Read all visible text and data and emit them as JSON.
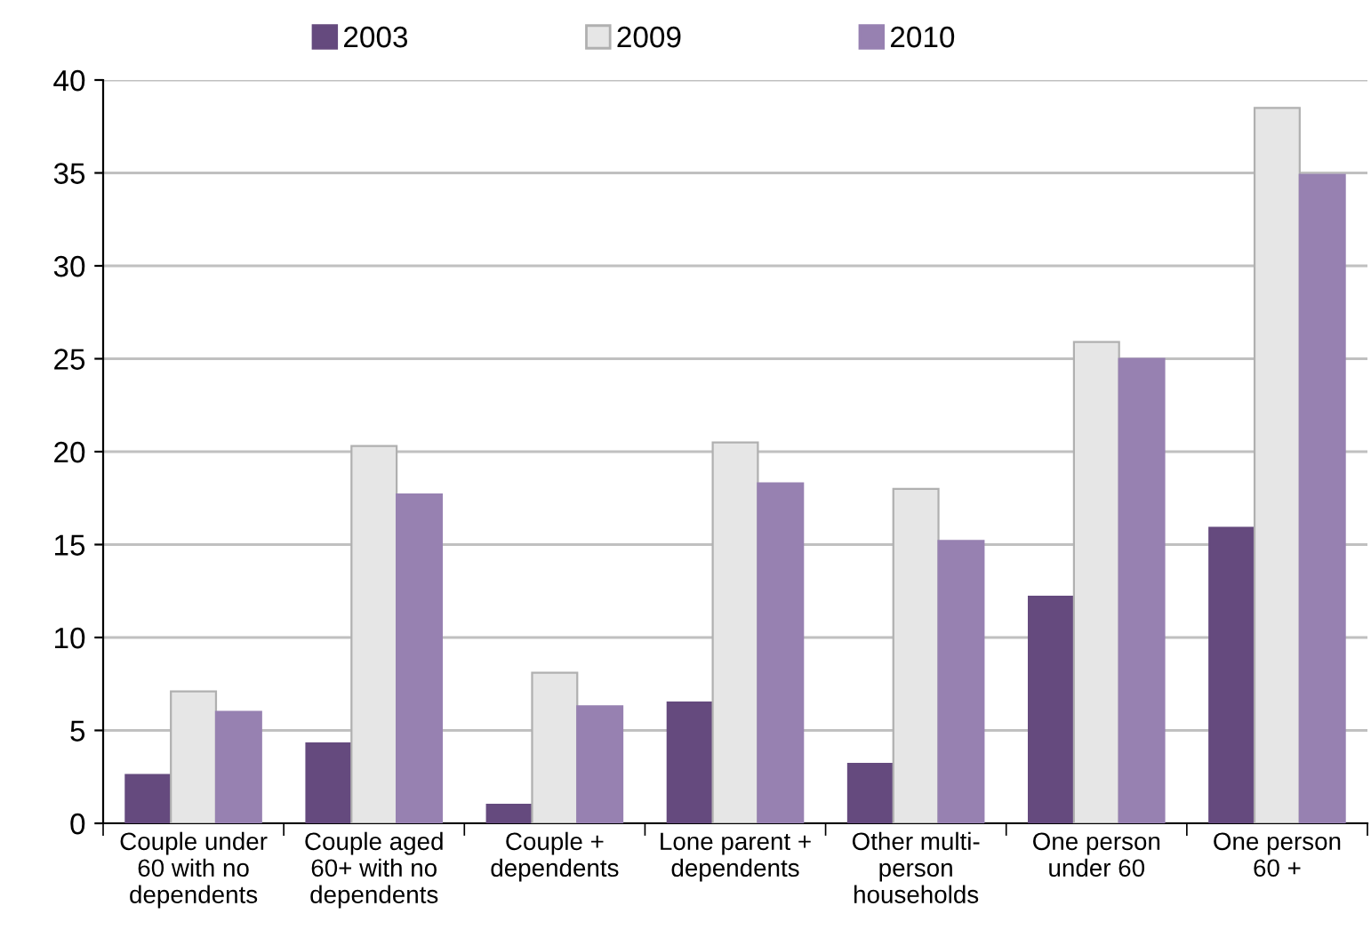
{
  "chart_data": {
    "type": "bar",
    "categories": [
      "Couple under\n60 with no\ndependents",
      "Couple aged\n60+ with no\ndependents",
      "Couple +\ndependents",
      "Lone parent +\ndependents",
      "Other multi-\nperson\nhouseholds",
      "One person\nunder 60",
      "One person\n60 +"
    ],
    "series": [
      {
        "name": "2003",
        "color": "#654a7e",
        "values": [
          2.6,
          4.3,
          1.0,
          6.5,
          3.2,
          12.2,
          15.9
        ]
      },
      {
        "name": "2009",
        "color": "#e6e6e6",
        "values": [
          7.1,
          20.3,
          8.1,
          20.5,
          18.0,
          25.9,
          38.5
        ]
      },
      {
        "name": "2010",
        "color": "#9781b1",
        "values": [
          6.0,
          17.7,
          6.3,
          18.3,
          15.2,
          25.0,
          34.9
        ]
      }
    ],
    "ylim": [
      0,
      40
    ],
    "yticks": [
      0,
      5,
      10,
      15,
      20,
      25,
      30,
      35,
      40
    ],
    "grid": "y",
    "legend": "top"
  }
}
